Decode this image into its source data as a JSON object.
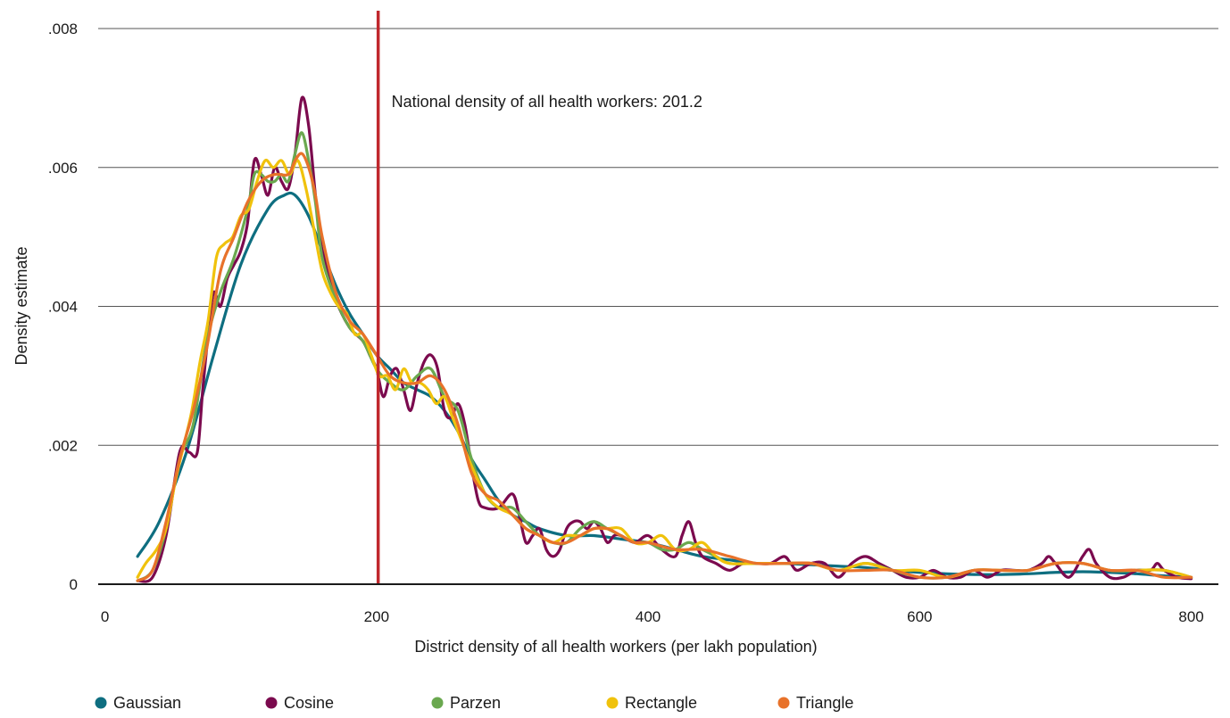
{
  "chart_data": {
    "type": "line",
    "title": "",
    "xlabel": "District density of all health workers (per lakh population)",
    "ylabel": "Density estimate",
    "xlim": [
      -5,
      820
    ],
    "ylim": [
      0,
      0.008
    ],
    "x_ticks": [
      0,
      200,
      400,
      600,
      800
    ],
    "x_tick_labels": [
      "0",
      "200",
      "400",
      "600",
      "800"
    ],
    "y_ticks": [
      0,
      0.002,
      0.004,
      0.006,
      0.008
    ],
    "y_tick_labels": [
      "0",
      ".002",
      ".004",
      ".006",
      ".008"
    ],
    "grid": "horizontal",
    "legend_position": "bottom",
    "reference_line": {
      "x": 201.2,
      "label": "National density of all health workers: 201.2",
      "color": "#c0282d"
    },
    "series": [
      {
        "name": "Gaussian",
        "color": "#0e6e80",
        "x": [
          24,
          40,
          60,
          80,
          100,
          120,
          132,
          140,
          150,
          160,
          170,
          180,
          190,
          200,
          210,
          220,
          230,
          240,
          250,
          260,
          270,
          280,
          290,
          300,
          310,
          320,
          340,
          360,
          380,
          400,
          420,
          440,
          460,
          480,
          500,
          520,
          540,
          560,
          580,
          600,
          620,
          640,
          660,
          680,
          700,
          720,
          740,
          760,
          780,
          800
        ],
        "y": [
          0.0004,
          0.0009,
          0.0019,
          0.0033,
          0.0046,
          0.0054,
          0.0056,
          0.0056,
          0.0053,
          0.0048,
          0.0043,
          0.0039,
          0.0036,
          0.0033,
          0.0031,
          0.0029,
          0.0028,
          0.0027,
          0.0025,
          0.0022,
          0.0018,
          0.0015,
          0.0012,
          0.001,
          0.0009,
          0.0008,
          0.0007,
          0.0007,
          0.00065,
          0.0006,
          0.0005,
          0.0004,
          0.00035,
          0.0003,
          0.0003,
          0.00028,
          0.00026,
          0.00024,
          0.0002,
          0.00017,
          0.00015,
          0.00014,
          0.00014,
          0.00015,
          0.00017,
          0.00018,
          0.00017,
          0.00015,
          0.00012,
          0.0001
        ]
      },
      {
        "name": "Cosine",
        "color": "#7b0a4e",
        "x": [
          24,
          35,
          45,
          55,
          62,
          68,
          72,
          76,
          80,
          85,
          90,
          95,
          100,
          105,
          110,
          115,
          120,
          125,
          130,
          135,
          140,
          145,
          150,
          155,
          160,
          170,
          180,
          190,
          195,
          200,
          205,
          210,
          215,
          220,
          225,
          230,
          235,
          240,
          245,
          250,
          255,
          260,
          265,
          270,
          275,
          280,
          290,
          300,
          305,
          310,
          315,
          320,
          325,
          330,
          335,
          340,
          345,
          350,
          355,
          360,
          365,
          370,
          375,
          380,
          390,
          400,
          410,
          420,
          425,
          430,
          435,
          440,
          450,
          460,
          470,
          480,
          490,
          500,
          505,
          510,
          520,
          530,
          540,
          550,
          560,
          570,
          580,
          590,
          600,
          610,
          620,
          630,
          640,
          650,
          660,
          670,
          680,
          690,
          695,
          700,
          710,
          720,
          725,
          730,
          740,
          750,
          760,
          770,
          775,
          780,
          790,
          800
        ],
        "y": [
          5e-05,
          0.0001,
          0.0007,
          0.0019,
          0.0019,
          0.0019,
          0.0028,
          0.0036,
          0.0042,
          0.004,
          0.0044,
          0.0046,
          0.0048,
          0.0052,
          0.0061,
          0.0059,
          0.0056,
          0.006,
          0.0058,
          0.0057,
          0.0062,
          0.007,
          0.0066,
          0.0056,
          0.0048,
          0.0041,
          0.0037,
          0.0035,
          0.0033,
          0.0031,
          0.0027,
          0.003,
          0.0031,
          0.0028,
          0.0025,
          0.0029,
          0.0032,
          0.0033,
          0.0031,
          0.0025,
          0.0024,
          0.0026,
          0.0023,
          0.0017,
          0.0012,
          0.0011,
          0.0011,
          0.0013,
          0.001,
          0.0006,
          0.0007,
          0.0008,
          0.0005,
          0.0004,
          0.0005,
          0.0008,
          0.0009,
          0.0009,
          0.0008,
          0.0009,
          0.0008,
          0.0006,
          0.0007,
          0.0007,
          0.0006,
          0.0007,
          0.0005,
          0.0004,
          0.0007,
          0.0009,
          0.0006,
          0.0004,
          0.0003,
          0.0002,
          0.0003,
          0.0003,
          0.0003,
          0.0004,
          0.0003,
          0.0002,
          0.0003,
          0.0003,
          0.0001,
          0.0003,
          0.0004,
          0.0003,
          0.0002,
          0.0001,
          0.0001,
          0.0002,
          0.0001,
          0.0001,
          0.0002,
          0.0001,
          0.0002,
          0.0002,
          0.0002,
          0.0003,
          0.0004,
          0.0003,
          0.0001,
          0.0004,
          0.0005,
          0.0003,
          0.0001,
          0.0001,
          0.0002,
          0.0002,
          0.0003,
          0.0002,
          0.0001,
          8e-05
        ]
      },
      {
        "name": "Parzen",
        "color": "#6aa84f",
        "x": [
          24,
          35,
          45,
          55,
          65,
          75,
          85,
          95,
          105,
          110,
          115,
          120,
          125,
          130,
          135,
          140,
          145,
          150,
          155,
          160,
          170,
          180,
          190,
          200,
          210,
          220,
          230,
          240,
          250,
          260,
          270,
          280,
          290,
          300,
          310,
          320,
          330,
          340,
          350,
          360,
          370,
          380,
          390,
          400,
          410,
          420,
          430,
          440,
          450,
          460,
          480,
          500,
          520,
          540,
          560,
          580,
          600,
          620,
          640,
          660,
          680,
          700,
          720,
          740,
          760,
          780,
          800
        ],
        "y": [
          5e-05,
          0.0002,
          0.0008,
          0.0018,
          0.0023,
          0.0035,
          0.0042,
          0.0047,
          0.0054,
          0.0059,
          0.0059,
          0.0058,
          0.0058,
          0.0059,
          0.0058,
          0.0062,
          0.0065,
          0.0061,
          0.0055,
          0.0047,
          0.0041,
          0.0037,
          0.0035,
          0.0031,
          0.0029,
          0.0028,
          0.003,
          0.0031,
          0.0027,
          0.0025,
          0.0018,
          0.0013,
          0.0011,
          0.0011,
          0.0009,
          0.0007,
          0.0006,
          0.0006,
          0.0008,
          0.0009,
          0.0008,
          0.0007,
          0.0006,
          0.0006,
          0.0005,
          0.0005,
          0.0006,
          0.0005,
          0.0004,
          0.0003,
          0.0003,
          0.0003,
          0.0003,
          0.0002,
          0.0003,
          0.0002,
          0.0001,
          0.0001,
          0.0002,
          0.0002,
          0.0002,
          0.0003,
          0.0003,
          0.0002,
          0.0002,
          0.0002,
          0.0001
        ]
      },
      {
        "name": "Rectangle",
        "color": "#f0c20c",
        "x": [
          24,
          30,
          38,
          45,
          52,
          58,
          64,
          70,
          76,
          82,
          88,
          94,
          100,
          106,
          112,
          118,
          124,
          130,
          136,
          142,
          148,
          154,
          160,
          166,
          172,
          178,
          184,
          190,
          196,
          202,
          208,
          214,
          220,
          226,
          232,
          238,
          244,
          250,
          256,
          262,
          270,
          280,
          290,
          300,
          310,
          320,
          330,
          340,
          350,
          360,
          370,
          380,
          390,
          400,
          410,
          420,
          430,
          440,
          450,
          460,
          480,
          500,
          520,
          540,
          560,
          580,
          600,
          620,
          640,
          660,
          680,
          700,
          720,
          740,
          760,
          780,
          800
        ],
        "y": [
          0.0001,
          0.0003,
          0.0005,
          0.0008,
          0.0015,
          0.002,
          0.0025,
          0.0032,
          0.0038,
          0.0047,
          0.0049,
          0.005,
          0.0053,
          0.0054,
          0.0058,
          0.0061,
          0.006,
          0.0061,
          0.0059,
          0.0061,
          0.0057,
          0.0051,
          0.0045,
          0.0042,
          0.004,
          0.0039,
          0.0036,
          0.0036,
          0.0033,
          0.003,
          0.003,
          0.0028,
          0.0031,
          0.0029,
          0.0029,
          0.0028,
          0.0026,
          0.0027,
          0.0024,
          0.0021,
          0.0017,
          0.0013,
          0.0011,
          0.001,
          0.0008,
          0.0007,
          0.0006,
          0.0007,
          0.0007,
          0.0008,
          0.0008,
          0.0008,
          0.0006,
          0.0006,
          0.0007,
          0.0005,
          0.0005,
          0.0006,
          0.0004,
          0.0003,
          0.0003,
          0.0003,
          0.0003,
          0.0002,
          0.0003,
          0.0002,
          0.0002,
          0.0001,
          0.0002,
          0.0002,
          0.0002,
          0.0003,
          0.0003,
          0.0002,
          0.0002,
          0.0002,
          0.0001
        ]
      },
      {
        "name": "Triangle",
        "color": "#e8722a",
        "x": [
          24,
          35,
          45,
          55,
          65,
          75,
          85,
          95,
          105,
          115,
          125,
          135,
          140,
          145,
          150,
          155,
          160,
          170,
          180,
          190,
          200,
          210,
          220,
          230,
          240,
          250,
          260,
          270,
          280,
          290,
          300,
          310,
          320,
          330,
          340,
          350,
          360,
          370,
          380,
          390,
          400,
          420,
          440,
          460,
          480,
          500,
          520,
          540,
          560,
          580,
          600,
          620,
          640,
          660,
          680,
          700,
          720,
          740,
          760,
          780,
          800
        ],
        "y": [
          5e-05,
          0.0002,
          0.0009,
          0.0018,
          0.0025,
          0.0034,
          0.0045,
          0.005,
          0.0055,
          0.0058,
          0.0059,
          0.0059,
          0.0061,
          0.0062,
          0.006,
          0.0056,
          0.005,
          0.0042,
          0.0038,
          0.0036,
          0.0033,
          0.003,
          0.0029,
          0.0029,
          0.003,
          0.0028,
          0.0023,
          0.0016,
          0.0013,
          0.0012,
          0.001,
          0.0008,
          0.0007,
          0.0006,
          0.0006,
          0.0007,
          0.0008,
          0.0008,
          0.0007,
          0.0006,
          0.0006,
          0.0005,
          0.0005,
          0.0004,
          0.0003,
          0.0003,
          0.0003,
          0.0002,
          0.0002,
          0.0002,
          0.0001,
          0.0001,
          0.0002,
          0.0002,
          0.0002,
          0.0003,
          0.0003,
          0.0002,
          0.0002,
          0.0001,
          0.0001
        ]
      }
    ]
  }
}
